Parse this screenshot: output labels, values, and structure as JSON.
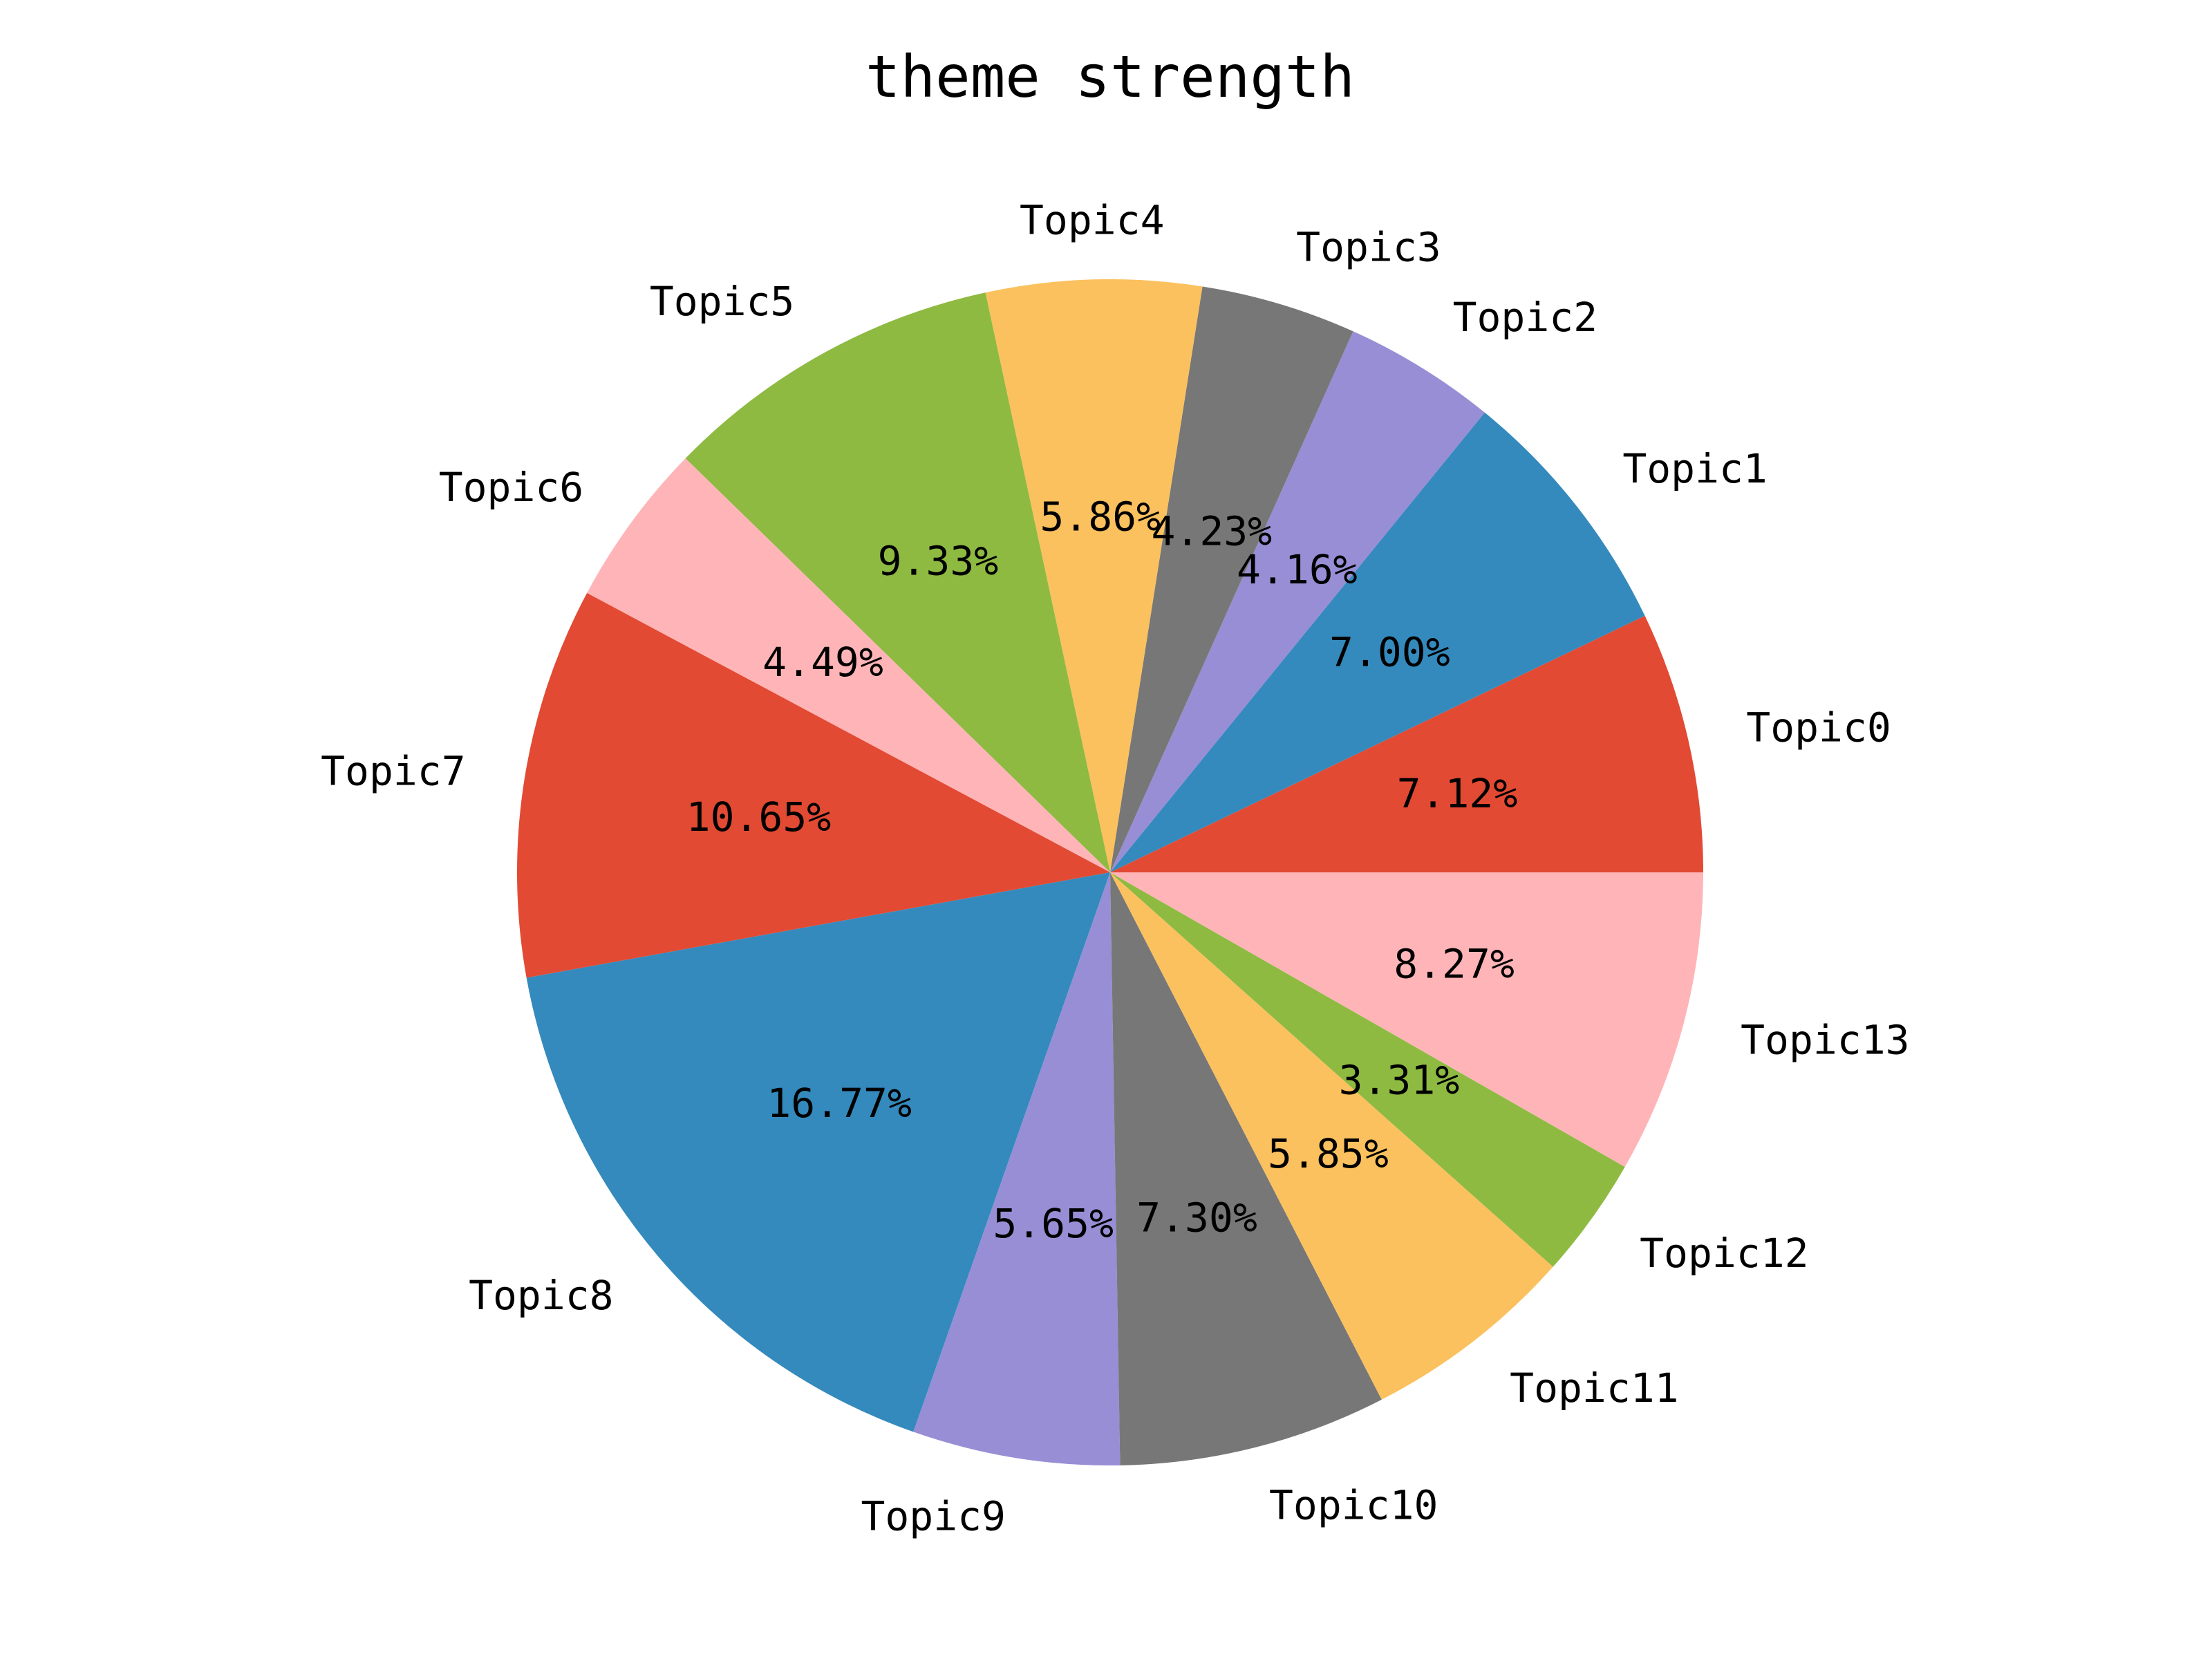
{
  "chart_data": {
    "type": "pie",
    "title": "theme strength",
    "categories": [
      "Topic0",
      "Topic1",
      "Topic2",
      "Topic3",
      "Topic4",
      "Topic5",
      "Topic6",
      "Topic7",
      "Topic8",
      "Topic9",
      "Topic10",
      "Topic11",
      "Topic12",
      "Topic13"
    ],
    "values": [
      7.12,
      7.0,
      4.16,
      4.23,
      5.86,
      9.33,
      4.49,
      10.65,
      16.77,
      5.65,
      7.3,
      5.85,
      3.31,
      8.27
    ],
    "percent_labels": [
      "7.12%",
      "7.00%",
      "4.16%",
      "4.23%",
      "5.86%",
      "9.33%",
      "4.49%",
      "10.65%",
      "16.77%",
      "5.65%",
      "7.30%",
      "5.85%",
      "3.31%",
      "8.27%"
    ],
    "colors": [
      "#E24A33",
      "#348ABD",
      "#988ED5",
      "#777777",
      "#FBC15E",
      "#8EBA42",
      "#FFB5B8",
      "#E24A33",
      "#348ABD",
      "#988ED5",
      "#777777",
      "#FBC15E",
      "#8EBA42",
      "#FFB5B8"
    ],
    "start_angle_deg": 0,
    "direction": "counterclockwise",
    "legend": "none"
  }
}
